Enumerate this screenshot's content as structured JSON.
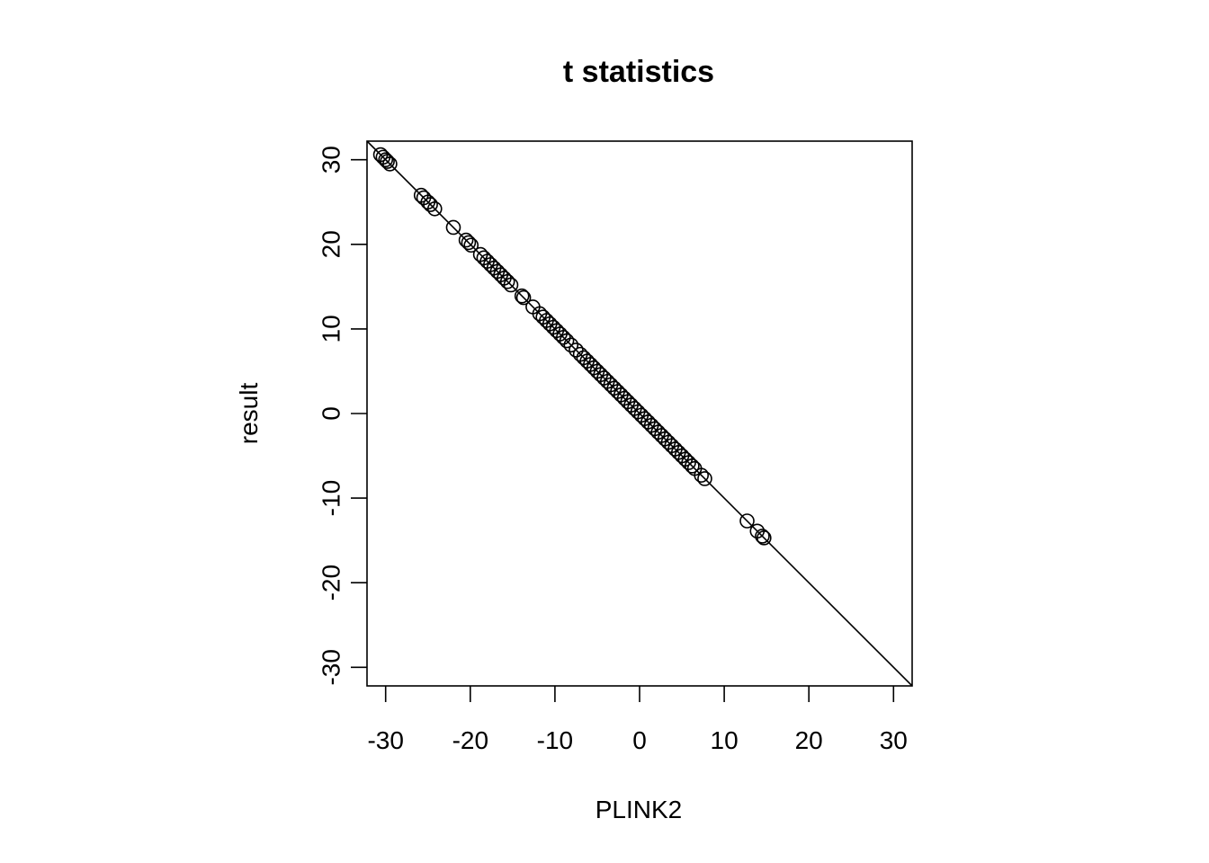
{
  "chart_data": {
    "type": "scatter",
    "title": "t statistics",
    "xlabel": "PLINK2",
    "ylabel": "result",
    "xlim": [
      -32.2,
      32.2
    ],
    "ylim": [
      -32.2,
      32.2
    ],
    "xticks": [
      -30,
      -20,
      -10,
      0,
      10,
      20,
      30
    ],
    "yticks": [
      -30,
      -20,
      -10,
      0,
      10,
      20,
      30
    ],
    "xtick_labels": [
      "-30",
      "-20",
      "-10",
      "0",
      "10",
      "20",
      "30"
    ],
    "ytick_labels": [
      "-30",
      "-20",
      "-10",
      "0",
      "10",
      "20",
      "30"
    ],
    "grid": false,
    "reference_line": {
      "intercept": 0,
      "slope": -1
    },
    "points": [
      {
        "x": -30.6,
        "y": 30.6
      },
      {
        "x": -30.3,
        "y": 30.3
      },
      {
        "x": -30.0,
        "y": 30.0
      },
      {
        "x": -29.8,
        "y": 29.8
      },
      {
        "x": -29.5,
        "y": 29.5
      },
      {
        "x": -25.8,
        "y": 25.8
      },
      {
        "x": -25.5,
        "y": 25.5
      },
      {
        "x": -25.0,
        "y": 25.0
      },
      {
        "x": -24.7,
        "y": 24.7
      },
      {
        "x": -24.2,
        "y": 24.2
      },
      {
        "x": -22.0,
        "y": 22.0
      },
      {
        "x": -20.5,
        "y": 20.5
      },
      {
        "x": -20.2,
        "y": 20.2
      },
      {
        "x": -19.9,
        "y": 19.9
      },
      {
        "x": -18.8,
        "y": 18.8
      },
      {
        "x": -18.4,
        "y": 18.4
      },
      {
        "x": -18.0,
        "y": 18.0
      },
      {
        "x": -17.6,
        "y": 17.6
      },
      {
        "x": -17.2,
        "y": 17.2
      },
      {
        "x": -16.8,
        "y": 16.8
      },
      {
        "x": -16.4,
        "y": 16.4
      },
      {
        "x": -16.0,
        "y": 16.0
      },
      {
        "x": -15.6,
        "y": 15.6
      },
      {
        "x": -15.2,
        "y": 15.2
      },
      {
        "x": -13.9,
        "y": 13.9
      },
      {
        "x": -13.7,
        "y": 13.7
      },
      {
        "x": -12.6,
        "y": 12.6
      },
      {
        "x": -11.8,
        "y": 11.8
      },
      {
        "x": -11.4,
        "y": 11.4
      },
      {
        "x": -11.0,
        "y": 11.0
      },
      {
        "x": -10.6,
        "y": 10.6
      },
      {
        "x": -10.2,
        "y": 10.2
      },
      {
        "x": -9.8,
        "y": 9.8
      },
      {
        "x": -9.4,
        "y": 9.4
      },
      {
        "x": -9.0,
        "y": 9.0
      },
      {
        "x": -8.6,
        "y": 8.6
      },
      {
        "x": -8.1,
        "y": 8.1
      },
      {
        "x": -7.5,
        "y": 7.5
      },
      {
        "x": -7.0,
        "y": 7.0
      },
      {
        "x": -6.6,
        "y": 6.6
      },
      {
        "x": -6.2,
        "y": 6.2
      },
      {
        "x": -5.8,
        "y": 5.8
      },
      {
        "x": -5.4,
        "y": 5.4
      },
      {
        "x": -5.0,
        "y": 5.0
      },
      {
        "x": -4.6,
        "y": 4.6
      },
      {
        "x": -4.2,
        "y": 4.2
      },
      {
        "x": -3.8,
        "y": 3.8
      },
      {
        "x": -3.4,
        "y": 3.4
      },
      {
        "x": -3.0,
        "y": 3.0
      },
      {
        "x": -2.6,
        "y": 2.6
      },
      {
        "x": -2.2,
        "y": 2.2
      },
      {
        "x": -1.8,
        "y": 1.8
      },
      {
        "x": -1.4,
        "y": 1.4
      },
      {
        "x": -1.0,
        "y": 1.0
      },
      {
        "x": -0.6,
        "y": 0.6
      },
      {
        "x": -0.2,
        "y": 0.2
      },
      {
        "x": 0.2,
        "y": -0.2
      },
      {
        "x": 0.6,
        "y": -0.6
      },
      {
        "x": 1.0,
        "y": -1.0
      },
      {
        "x": 1.4,
        "y": -1.4
      },
      {
        "x": 1.8,
        "y": -1.8
      },
      {
        "x": 2.2,
        "y": -2.2
      },
      {
        "x": 2.6,
        "y": -2.6
      },
      {
        "x": 3.0,
        "y": -3.0
      },
      {
        "x": 3.4,
        "y": -3.4
      },
      {
        "x": 3.8,
        "y": -3.8
      },
      {
        "x": 4.2,
        "y": -4.2
      },
      {
        "x": 4.6,
        "y": -4.6
      },
      {
        "x": 5.0,
        "y": -5.0
      },
      {
        "x": 5.4,
        "y": -5.4
      },
      {
        "x": 5.8,
        "y": -5.8
      },
      {
        "x": 6.2,
        "y": -6.2
      },
      {
        "x": 6.5,
        "y": -6.5
      },
      {
        "x": 7.3,
        "y": -7.3
      },
      {
        "x": 7.7,
        "y": -7.7
      },
      {
        "x": 12.7,
        "y": -12.7
      },
      {
        "x": 13.9,
        "y": -13.9
      },
      {
        "x": 14.5,
        "y": -14.5
      },
      {
        "x": 14.7,
        "y": -14.7
      }
    ]
  }
}
